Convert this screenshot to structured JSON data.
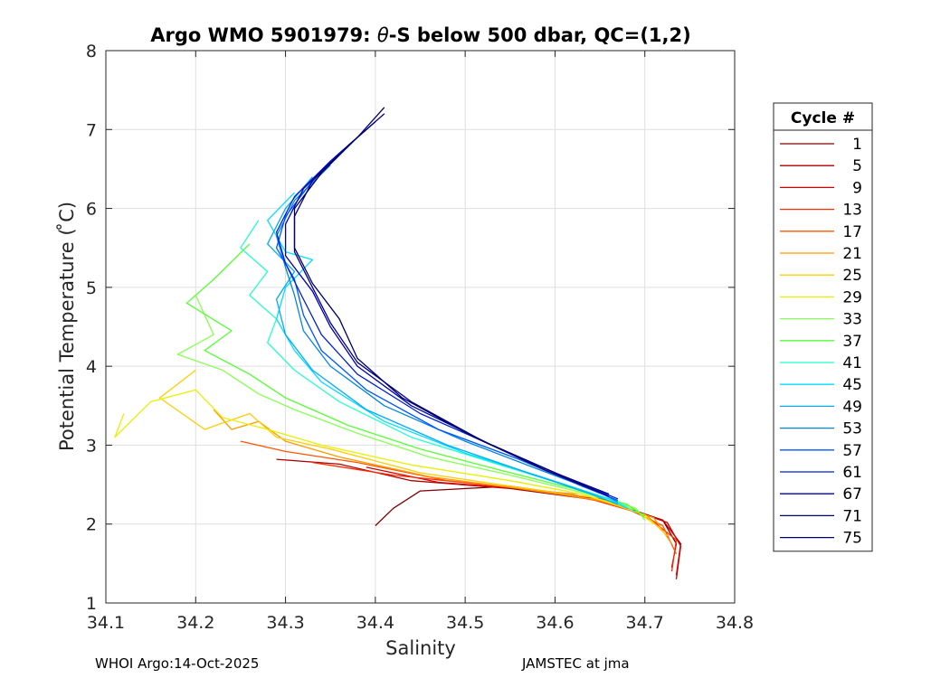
{
  "chart_data": {
    "type": "line",
    "title_prefix": "Argo WMO 5901979: ",
    "title_theta": "θ",
    "title_suffix": "-S below 500 dbar,  QC=(1,2)",
    "xlabel": "Salinity",
    "ylabel": "Potential Temperature ( ̊C)",
    "xlim": [
      34.1,
      34.8
    ],
    "ylim": [
      1,
      8
    ],
    "xticks": [
      "34.1",
      "34.2",
      "34.3",
      "34.4",
      "34.5",
      "34.6",
      "34.7",
      "34.8"
    ],
    "yticks": [
      "1",
      "2",
      "3",
      "4",
      "5",
      "6",
      "7",
      "8"
    ],
    "grid": true,
    "legend_title": "Cycle #",
    "legend": [
      {
        "label": "1",
        "color": "#800000"
      },
      {
        "label": "5",
        "color": "#aa0000"
      },
      {
        "label": "9",
        "color": "#d40000"
      },
      {
        "label": "13",
        "color": "#ff2a00"
      },
      {
        "label": "17",
        "color": "#ff5500"
      },
      {
        "label": "21",
        "color": "#ff9900"
      },
      {
        "label": "25",
        "color": "#ffcc00"
      },
      {
        "label": "29",
        "color": "#e6f000"
      },
      {
        "label": "33",
        "color": "#88ff55"
      },
      {
        "label": "37",
        "color": "#55ff33"
      },
      {
        "label": "41",
        "color": "#22ffcc"
      },
      {
        "label": "45",
        "color": "#00ddff"
      },
      {
        "label": "49",
        "color": "#00aaff"
      },
      {
        "label": "53",
        "color": "#0088dd"
      },
      {
        "label": "57",
        "color": "#0055ff"
      },
      {
        "label": "61",
        "color": "#0022cc"
      },
      {
        "label": "67",
        "color": "#0000aa"
      },
      {
        "label": "71",
        "color": "#000088"
      },
      {
        "label": "75",
        "color": "#000066"
      }
    ],
    "series": [
      {
        "name": "1",
        "color": "#800000",
        "points": [
          [
            34.4,
            1.98
          ],
          [
            34.42,
            2.2
          ],
          [
            34.45,
            2.42
          ],
          [
            34.55,
            2.48
          ],
          [
            34.65,
            2.32
          ],
          [
            34.72,
            2.05
          ],
          [
            34.735,
            1.75
          ],
          [
            34.73,
            1.45
          ]
        ]
      },
      {
        "name": "5",
        "color": "#aa0000",
        "points": [
          [
            34.29,
            2.82
          ],
          [
            34.36,
            2.76
          ],
          [
            34.44,
            2.55
          ],
          [
            34.55,
            2.45
          ],
          [
            34.65,
            2.3
          ],
          [
            34.72,
            2.05
          ],
          [
            34.74,
            1.75
          ],
          [
            34.735,
            1.35
          ]
        ]
      },
      {
        "name": "9",
        "color": "#d40000",
        "points": [
          [
            34.39,
            2.72
          ],
          [
            34.47,
            2.53
          ],
          [
            34.57,
            2.44
          ],
          [
            34.66,
            2.28
          ],
          [
            34.725,
            2.02
          ],
          [
            34.74,
            1.72
          ],
          [
            34.735,
            1.3
          ]
        ]
      },
      {
        "name": "13",
        "color": "#ff2a00",
        "points": [
          [
            34.33,
            2.78
          ],
          [
            34.42,
            2.62
          ],
          [
            34.52,
            2.5
          ],
          [
            34.62,
            2.38
          ],
          [
            34.7,
            2.12
          ],
          [
            34.735,
            1.8
          ],
          [
            34.73,
            1.4
          ]
        ]
      },
      {
        "name": "17",
        "color": "#ff5500",
        "points": [
          [
            34.25,
            3.05
          ],
          [
            34.3,
            2.92
          ],
          [
            34.38,
            2.78
          ],
          [
            34.48,
            2.55
          ],
          [
            34.58,
            2.43
          ],
          [
            34.67,
            2.25
          ],
          [
            34.72,
            1.98
          ],
          [
            34.735,
            1.62
          ]
        ]
      },
      {
        "name": "21",
        "color": "#ff9900",
        "points": [
          [
            34.22,
            3.45
          ],
          [
            34.24,
            3.2
          ],
          [
            34.27,
            3.3
          ],
          [
            34.3,
            3.05
          ],
          [
            34.36,
            2.85
          ],
          [
            34.46,
            2.6
          ],
          [
            34.56,
            2.45
          ],
          [
            34.65,
            2.3
          ],
          [
            34.71,
            2.08
          ],
          [
            34.73,
            1.75
          ]
        ]
      },
      {
        "name": "25",
        "color": "#ffcc00",
        "points": [
          [
            34.2,
            3.95
          ],
          [
            34.16,
            3.6
          ],
          [
            34.21,
            3.2
          ],
          [
            34.26,
            3.4
          ],
          [
            34.29,
            3.1
          ],
          [
            34.35,
            2.95
          ],
          [
            34.45,
            2.65
          ],
          [
            34.55,
            2.48
          ],
          [
            34.64,
            2.34
          ],
          [
            34.7,
            2.12
          ],
          [
            34.725,
            1.85
          ]
        ]
      },
      {
        "name": "29",
        "color": "#e6f000",
        "points": [
          [
            34.12,
            3.4
          ],
          [
            34.11,
            3.1
          ],
          [
            34.15,
            3.55
          ],
          [
            34.2,
            3.7
          ],
          [
            34.23,
            3.35
          ],
          [
            34.28,
            3.2
          ],
          [
            34.34,
            3.0
          ],
          [
            34.44,
            2.75
          ],
          [
            34.55,
            2.55
          ],
          [
            34.63,
            2.38
          ],
          [
            34.69,
            2.18
          ],
          [
            34.71,
            2.0
          ]
        ]
      },
      {
        "name": "33",
        "color": "#88ff55",
        "points": [
          [
            34.2,
            4.9
          ],
          [
            34.22,
            4.4
          ],
          [
            34.18,
            4.15
          ],
          [
            34.23,
            3.95
          ],
          [
            34.27,
            3.65
          ],
          [
            34.31,
            3.45
          ],
          [
            34.38,
            3.15
          ],
          [
            34.46,
            2.85
          ],
          [
            34.55,
            2.62
          ],
          [
            34.63,
            2.4
          ],
          [
            34.69,
            2.2
          ],
          [
            34.7,
            2.05
          ]
        ]
      },
      {
        "name": "37",
        "color": "#55ff33",
        "points": [
          [
            34.26,
            5.55
          ],
          [
            34.22,
            5.1
          ],
          [
            34.19,
            4.8
          ],
          [
            34.24,
            4.45
          ],
          [
            34.21,
            4.2
          ],
          [
            34.26,
            3.9
          ],
          [
            34.3,
            3.6
          ],
          [
            34.37,
            3.25
          ],
          [
            34.45,
            2.95
          ],
          [
            34.54,
            2.68
          ],
          [
            34.62,
            2.45
          ],
          [
            34.68,
            2.25
          ],
          [
            34.7,
            2.1
          ]
        ]
      },
      {
        "name": "41",
        "color": "#22ffcc",
        "points": [
          [
            34.27,
            5.85
          ],
          [
            34.25,
            5.5
          ],
          [
            34.28,
            5.2
          ],
          [
            34.26,
            4.9
          ],
          [
            34.29,
            4.6
          ],
          [
            34.28,
            4.3
          ],
          [
            34.31,
            3.95
          ],
          [
            34.36,
            3.55
          ],
          [
            34.44,
            3.1
          ],
          [
            34.53,
            2.78
          ],
          [
            34.61,
            2.5
          ],
          [
            34.67,
            2.28
          ],
          [
            34.69,
            2.15
          ]
        ]
      },
      {
        "name": "45",
        "color": "#00ddff",
        "points": [
          [
            34.31,
            6.2
          ],
          [
            34.28,
            5.85
          ],
          [
            34.3,
            5.45
          ],
          [
            34.33,
            5.35
          ],
          [
            34.3,
            5.0
          ],
          [
            34.29,
            4.6
          ],
          [
            34.31,
            4.2
          ],
          [
            34.34,
            3.8
          ],
          [
            34.41,
            3.3
          ],
          [
            34.5,
            2.9
          ],
          [
            34.59,
            2.58
          ],
          [
            34.66,
            2.32
          ],
          [
            34.68,
            2.2
          ]
        ]
      },
      {
        "name": "49",
        "color": "#00aaff",
        "points": [
          [
            34.33,
            6.4
          ],
          [
            34.3,
            6.0
          ],
          [
            34.28,
            5.55
          ],
          [
            34.31,
            5.2
          ],
          [
            34.29,
            4.85
          ],
          [
            34.3,
            4.4
          ],
          [
            34.33,
            3.95
          ],
          [
            34.39,
            3.45
          ],
          [
            34.48,
            3.0
          ],
          [
            34.57,
            2.65
          ],
          [
            34.64,
            2.38
          ],
          [
            34.67,
            2.25
          ]
        ]
      },
      {
        "name": "53",
        "color": "#0088dd",
        "points": [
          [
            34.35,
            6.55
          ],
          [
            34.31,
            6.1
          ],
          [
            34.29,
            5.65
          ],
          [
            34.3,
            5.25
          ],
          [
            34.31,
            4.9
          ],
          [
            34.32,
            4.45
          ],
          [
            34.35,
            4.0
          ],
          [
            34.41,
            3.5
          ],
          [
            34.5,
            3.05
          ],
          [
            34.58,
            2.7
          ],
          [
            34.65,
            2.4
          ],
          [
            34.67,
            2.28
          ]
        ]
      },
      {
        "name": "57",
        "color": "#0055ff",
        "points": [
          [
            34.37,
            6.8
          ],
          [
            34.33,
            6.35
          ],
          [
            34.3,
            5.9
          ],
          [
            34.29,
            5.5
          ],
          [
            34.31,
            5.1
          ],
          [
            34.32,
            4.65
          ],
          [
            34.34,
            4.2
          ],
          [
            34.39,
            3.7
          ],
          [
            34.47,
            3.2
          ],
          [
            34.56,
            2.82
          ],
          [
            34.63,
            2.48
          ],
          [
            34.67,
            2.3
          ]
        ]
      },
      {
        "name": "61",
        "color": "#0022cc",
        "points": [
          [
            34.39,
            7.0
          ],
          [
            34.35,
            6.6
          ],
          [
            34.31,
            6.15
          ],
          [
            34.29,
            5.7
          ],
          [
            34.3,
            5.3
          ],
          [
            34.32,
            4.85
          ],
          [
            34.34,
            4.4
          ],
          [
            34.38,
            3.9
          ],
          [
            34.45,
            3.4
          ],
          [
            34.54,
            2.95
          ],
          [
            34.62,
            2.55
          ],
          [
            34.67,
            2.32
          ]
        ]
      },
      {
        "name": "67",
        "color": "#0000aa",
        "points": [
          [
            34.4,
            7.1
          ],
          [
            34.36,
            6.7
          ],
          [
            34.32,
            6.25
          ],
          [
            34.3,
            5.8
          ],
          [
            34.3,
            5.4
          ],
          [
            34.33,
            4.95
          ],
          [
            34.35,
            4.5
          ],
          [
            34.38,
            4.0
          ],
          [
            34.44,
            3.5
          ],
          [
            34.53,
            3.0
          ],
          [
            34.61,
            2.6
          ],
          [
            34.66,
            2.35
          ]
        ]
      },
      {
        "name": "71",
        "color": "#000088",
        "points": [
          [
            34.41,
            7.2
          ],
          [
            34.37,
            6.8
          ],
          [
            34.33,
            6.35
          ],
          [
            34.31,
            5.9
          ],
          [
            34.31,
            5.45
          ],
          [
            34.33,
            5.0
          ],
          [
            34.35,
            4.55
          ],
          [
            34.38,
            4.05
          ],
          [
            34.44,
            3.55
          ],
          [
            34.52,
            3.05
          ],
          [
            34.6,
            2.65
          ],
          [
            34.66,
            2.38
          ]
        ]
      },
      {
        "name": "75",
        "color": "#000066",
        "points": [
          [
            34.41,
            7.28
          ],
          [
            34.38,
            6.9
          ],
          [
            34.34,
            6.45
          ],
          [
            34.31,
            6.0
          ],
          [
            34.31,
            5.5
          ],
          [
            34.33,
            5.05
          ],
          [
            34.36,
            4.6
          ],
          [
            34.38,
            4.1
          ],
          [
            34.43,
            3.6
          ],
          [
            34.51,
            3.1
          ],
          [
            34.59,
            2.68
          ],
          [
            34.65,
            2.4
          ]
        ]
      }
    ]
  },
  "footer": {
    "left": "WHOI Argo:14-Oct-2025",
    "right": "JAMSTEC at jma"
  }
}
